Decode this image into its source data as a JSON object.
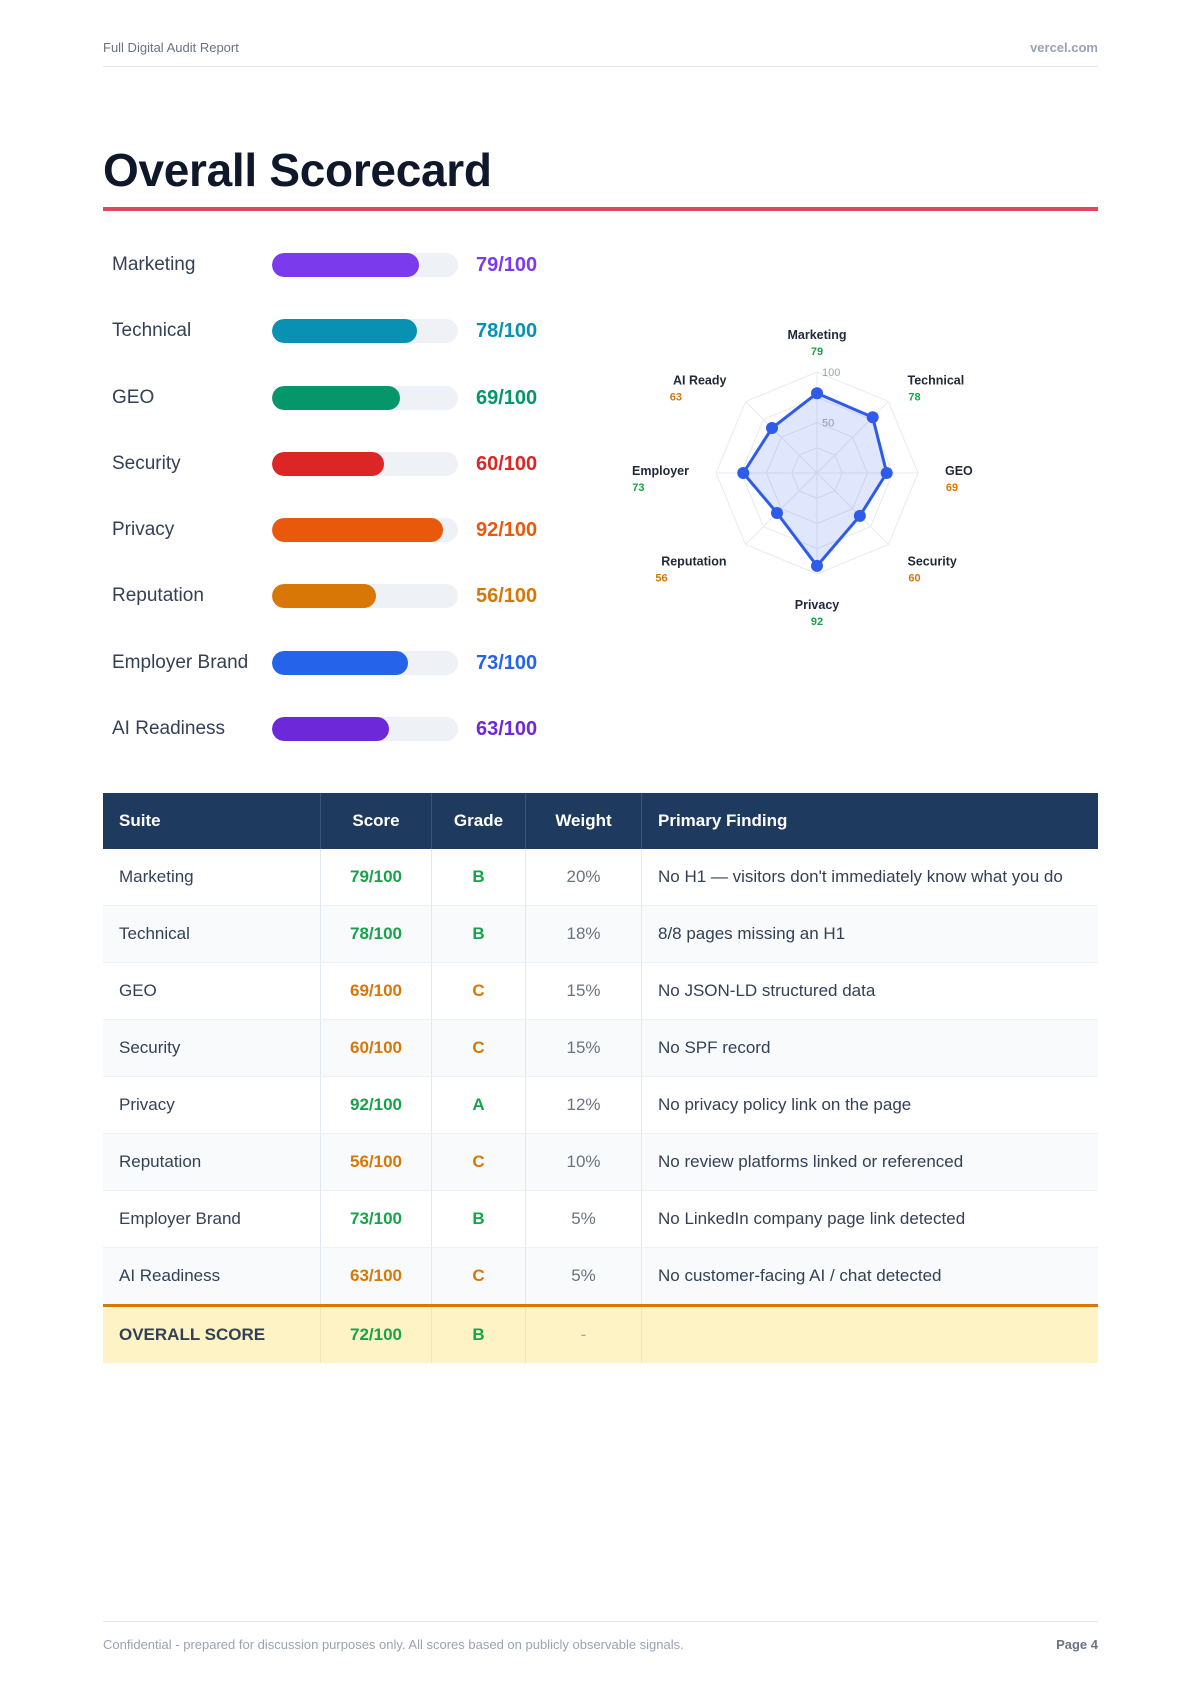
{
  "header": {
    "doc_title": "Full Digital Audit Report",
    "domain": "vercel.com"
  },
  "page_title": "Overall Scorecard",
  "scores": [
    {
      "label": "Marketing",
      "score": 79,
      "score_text": "79/100",
      "color": "#7c3aed"
    },
    {
      "label": "Technical",
      "score": 78,
      "score_text": "78/100",
      "color": "#0891b2"
    },
    {
      "label": "GEO",
      "score": 69,
      "score_text": "69/100",
      "color": "#059669"
    },
    {
      "label": "Security",
      "score": 60,
      "score_text": "60/100",
      "color": "#dc2626"
    },
    {
      "label": "Privacy",
      "score": 92,
      "score_text": "92/100",
      "color": "#ea580c"
    },
    {
      "label": "Reputation",
      "score": 56,
      "score_text": "56/100",
      "color": "#d97706"
    },
    {
      "label": "Employer Brand",
      "score": 73,
      "score_text": "73/100",
      "color": "#2563eb"
    },
    {
      "label": "AI Readiness",
      "score": 63,
      "score_text": "63/100",
      "color": "#6d28d9"
    }
  ],
  "chart_data": {
    "type": "radar",
    "axes": [
      "Marketing",
      "Technical",
      "GEO",
      "Security",
      "Privacy",
      "Reputation",
      "Employer",
      "AI Ready"
    ],
    "values": [
      79,
      78,
      69,
      60,
      92,
      56,
      73,
      63
    ],
    "value_colors": [
      "#16a34a",
      "#16a34a",
      "#d97706",
      "#d97706",
      "#16a34a",
      "#d97706",
      "#16a34a",
      "#d97706"
    ],
    "range": [
      0,
      100
    ],
    "ring_labels": [
      "50",
      "100"
    ],
    "series_color": "#2f5bea"
  },
  "table": {
    "headers": {
      "suite": "Suite",
      "score": "Score",
      "grade": "Grade",
      "weight": "Weight",
      "finding": "Primary Finding"
    },
    "rows": [
      {
        "suite": "Marketing",
        "score": "79/100",
        "grade": "B",
        "weight": "20%",
        "finding": "No H1 — visitors don't immediately know what you do",
        "color": "#16a34a"
      },
      {
        "suite": "Technical",
        "score": "78/100",
        "grade": "B",
        "weight": "18%",
        "finding": "8/8 pages missing an H1",
        "color": "#16a34a"
      },
      {
        "suite": "GEO",
        "score": "69/100",
        "grade": "C",
        "weight": "15%",
        "finding": "No JSON-LD structured data",
        "color": "#d97706"
      },
      {
        "suite": "Security",
        "score": "60/100",
        "grade": "C",
        "weight": "15%",
        "finding": "No SPF record",
        "color": "#d97706"
      },
      {
        "suite": "Privacy",
        "score": "92/100",
        "grade": "A",
        "weight": "12%",
        "finding": "No privacy policy link on the page",
        "color": "#16a34a"
      },
      {
        "suite": "Reputation",
        "score": "56/100",
        "grade": "C",
        "weight": "10%",
        "finding": "No review platforms linked or referenced",
        "color": "#d97706"
      },
      {
        "suite": "Employer Brand",
        "score": "73/100",
        "grade": "B",
        "weight": "5%",
        "finding": "No LinkedIn company page link detected",
        "color": "#16a34a"
      },
      {
        "suite": "AI Readiness",
        "score": "63/100",
        "grade": "C",
        "weight": "5%",
        "finding": "No customer-facing AI / chat detected",
        "color": "#d97706"
      }
    ],
    "total": {
      "suite": "OVERALL SCORE",
      "score": "72/100",
      "grade": "B",
      "weight": "-",
      "finding": "",
      "color": "#16a34a"
    }
  },
  "footer": {
    "note": "Confidential - prepared for discussion purposes only. All scores based on publicly observable signals.",
    "page": "Page 4"
  }
}
